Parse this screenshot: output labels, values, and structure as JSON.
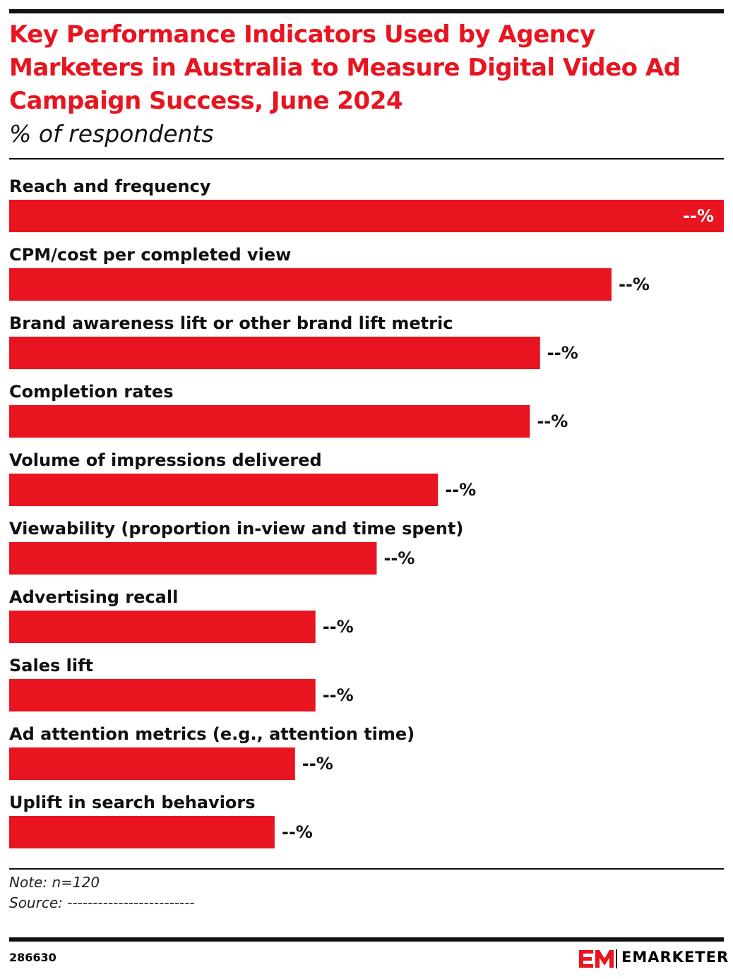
{
  "chart_data": {
    "type": "bar",
    "orientation": "horizontal",
    "title": "Key Performance Indicators Used by Agency Marketers in Australia to Measure Digital Video Ad Campaign Success, June 2024",
    "subtitle": "% of respondents",
    "categories": [
      "Reach and frequency",
      "CPM/cost per completed view",
      "Brand awareness lift or other brand lift metric",
      "Completion rates",
      "Volume of impressions delivered",
      "Viewability (proportion in-view and time spent)",
      "Advertising recall",
      "Sales lift",
      "Ad attention metrics (e.g., attention time)",
      "Uplift in search behaviors"
    ],
    "values": [
      70,
      59,
      52,
      51,
      42,
      36,
      30,
      30,
      28,
      26
    ],
    "value_labels": [
      "--%",
      "--%",
      "--%",
      "--%",
      "--%",
      "--%",
      "--%",
      "--%",
      "--%",
      "--%"
    ],
    "color": "#e8141f",
    "note": "Note: n=120",
    "source": "Source: -------------------------",
    "chart_id": "286630",
    "brand": "EMARKETER"
  }
}
